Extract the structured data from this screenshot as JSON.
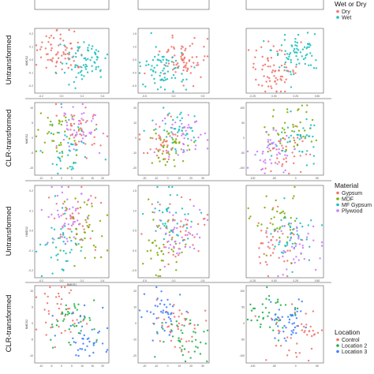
{
  "figure": {
    "row_labels": [
      "Untransformed",
      "CLR-transformed",
      "Untransformed",
      "CLR-transformed"
    ],
    "legends": [
      {
        "title": "Wet or Dry",
        "items": [
          {
            "label": "Dry",
            "color": "#f0736a"
          },
          {
            "label": "Wet",
            "color": "#1ebfbf"
          }
        ]
      },
      {
        "title": "Material",
        "items": [
          {
            "label": "Gypsum",
            "color": "#f0736a"
          },
          {
            "label": "MDF",
            "color": "#7cae00"
          },
          {
            "label": "MF Gypsum",
            "color": "#1ebfbf"
          },
          {
            "label": "Plywood",
            "color": "#c77cff"
          }
        ]
      },
      {
        "title": "Location",
        "items": [
          {
            "label": "Control",
            "color": "#f0736a"
          },
          {
            "label": "Location 2",
            "color": "#22b14c"
          },
          {
            "label": "Location 3",
            "color": "#3f7fff"
          }
        ]
      }
    ]
  },
  "chart_data": [
    {
      "type": "scatter",
      "panel": "wet-dry untransformed col1",
      "xlabel": "",
      "ylabel": "NMDS2",
      "series": [
        "Dry",
        "Wet"
      ],
      "xticks": [
        "-0.2",
        "0.0",
        "0.2",
        "0.4"
      ],
      "yticks": [
        "0.2",
        "0.1",
        "0.0",
        "-0.1",
        "-0.2"
      ]
    },
    {
      "type": "scatter",
      "panel": "wet-dry untransformed col2",
      "series": [
        "Dry",
        "Wet"
      ],
      "xticks": [
        "-0.5",
        "0.0",
        "0.5"
      ],
      "yticks": [
        "1.5",
        "1.0",
        "0.5",
        "0.0",
        "-0.5"
      ]
    },
    {
      "type": "scatter",
      "panel": "wet-dry untransformed col3",
      "series": [
        "Dry",
        "Wet"
      ],
      "xticks": [
        "-0.25",
        "0.00",
        "0.25",
        "0.50"
      ],
      "yticks": []
    },
    {
      "type": "scatter",
      "panel": "wet-dry clr col1",
      "ylabel": "NMDS2",
      "series": [
        "Gypsum",
        "MDF",
        "MF Gypsum",
        "Plywood"
      ],
      "xticks": [
        "-10",
        "-5",
        "0",
        "5",
        "10",
        "15",
        "20"
      ],
      "yticks": [
        "10",
        "5",
        "0",
        "-5",
        "-10"
      ]
    },
    {
      "type": "scatter",
      "panel": "wet-dry clr col2",
      "series": [
        "Gypsum",
        "MDF",
        "MF Gypsum",
        "Plywood"
      ],
      "xticks": [
        "-20",
        "-10",
        "0",
        "10",
        "20",
        "30"
      ],
      "yticks": [
        "20",
        "10",
        "0",
        "-10",
        "-20"
      ]
    },
    {
      "type": "scatter",
      "panel": "wet-dry clr col3",
      "series": [
        "Gypsum",
        "MDF",
        "MF Gypsum",
        "Plywood"
      ],
      "xticks": [
        "-100",
        "-50",
        "0",
        "50"
      ],
      "yticks": [
        "100",
        "50",
        "0",
        "-50",
        "-100"
      ]
    },
    {
      "type": "scatter",
      "panel": "material untransformed col1",
      "xlabel": "NMDS1",
      "ylabel": "NMDS2",
      "series": [
        "Gypsum",
        "MDF",
        "MF Gypsum",
        "Plywood"
      ],
      "xticks": [
        "-0.2",
        "0.0",
        "0.2",
        "0.4"
      ],
      "yticks": [
        "0.2",
        "0.1",
        "0.0",
        "-0.1",
        "-0.2"
      ]
    },
    {
      "type": "scatter",
      "panel": "material untransformed col2",
      "series": [
        "Gypsum",
        "MDF",
        "MF Gypsum",
        "Plywood"
      ],
      "xticks": [
        "-0.5",
        "0.0",
        "0.5"
      ],
      "yticks": [
        "1.5",
        "1.0",
        "0.5",
        "0.0",
        "-0.5"
      ]
    },
    {
      "type": "scatter",
      "panel": "material untransformed col3",
      "series": [
        "Gypsum",
        "MDF",
        "MF Gypsum",
        "Plywood"
      ],
      "xticks": [
        "-0.25",
        "0.00",
        "0.25",
        "0.50"
      ],
      "yticks": []
    },
    {
      "type": "scatter",
      "panel": "location clr col1",
      "ylabel": "NMDS2",
      "series": [
        "Control",
        "Location 2",
        "Location 3"
      ],
      "xticks": [
        "-10",
        "-5",
        "0",
        "5",
        "10",
        "15",
        "20"
      ],
      "yticks": [
        "10",
        "5",
        "0",
        "-5",
        "-10"
      ]
    },
    {
      "type": "scatter",
      "panel": "location clr col2",
      "series": [
        "Control",
        "Location 2",
        "Location 3"
      ],
      "xticks": [
        "-20",
        "-10",
        "0",
        "10",
        "20",
        "30"
      ],
      "yticks": [
        "20",
        "10",
        "0",
        "-10",
        "-20"
      ]
    },
    {
      "type": "scatter",
      "panel": "location clr col3",
      "series": [
        "Control",
        "Location 2",
        "Location 3"
      ],
      "xticks": [
        "-100",
        "-50",
        "0",
        "50"
      ],
      "yticks": [
        "100",
        "50",
        "0",
        "-50",
        "-100"
      ]
    }
  ]
}
